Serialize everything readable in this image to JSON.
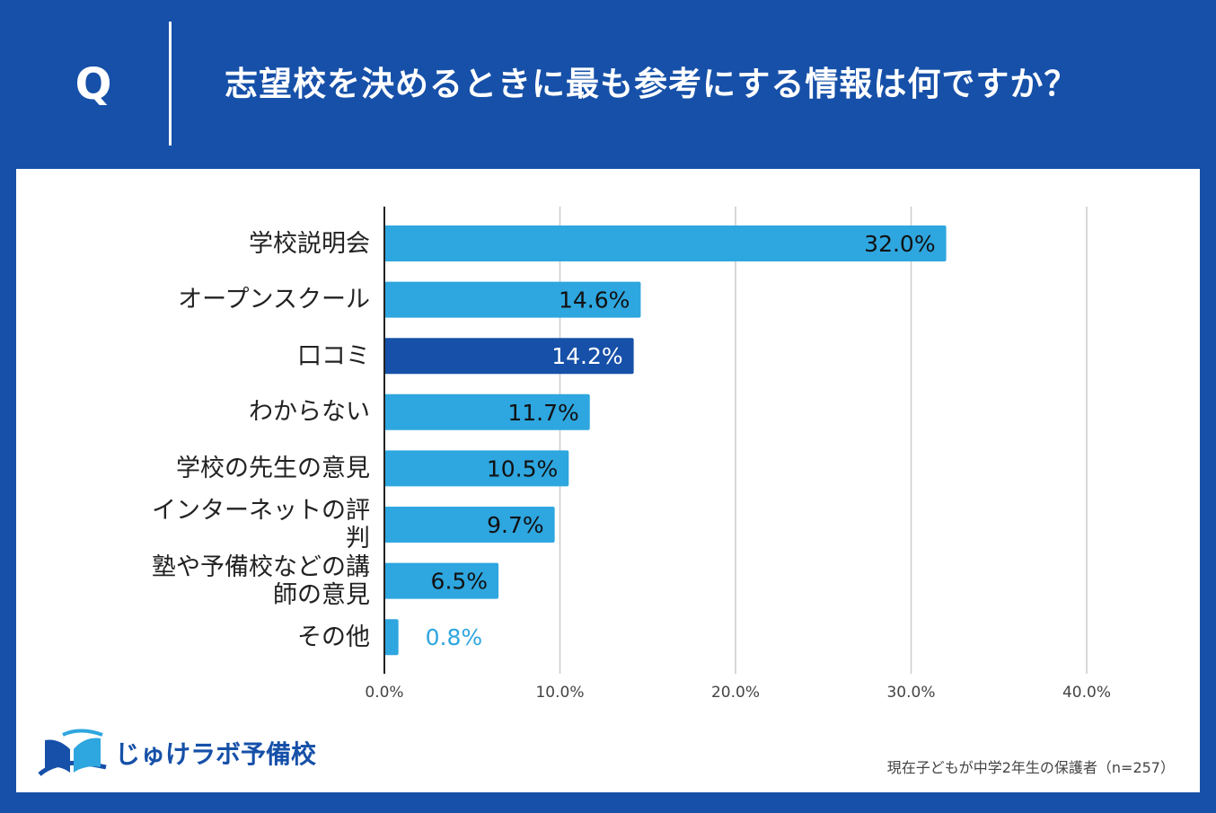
{
  "header": {
    "q_mark": "Q",
    "question": "志望校を決めるときに最も参考にする情報は何ですか？"
  },
  "colors": {
    "background": "#1650a8",
    "bar": "#2ea6df",
    "bar_highlight": "#1650a8",
    "value_outside": "#2ea6df",
    "gridline": "#cccccc"
  },
  "chart_data": {
    "type": "bar",
    "orientation": "horizontal",
    "categories": [
      "学校説明会",
      "オープンスクール",
      "口コミ",
      "わからない",
      "学校の先生の意見",
      "インターネットの評判",
      "塾や予備校などの講師の意見",
      "その他"
    ],
    "category_lines": [
      [
        "学校説明会"
      ],
      [
        "オープンスクール"
      ],
      [
        "口コミ"
      ],
      [
        "わからない"
      ],
      [
        "学校の先生の意見"
      ],
      [
        "インターネットの評",
        "判"
      ],
      [
        "塾や予備校などの講",
        "師の意見"
      ],
      [
        "その他"
      ]
    ],
    "values": [
      32.0,
      14.6,
      14.2,
      11.7,
      10.5,
      9.7,
      6.5,
      0.8
    ],
    "value_labels": [
      "32.0%",
      "14.6%",
      "14.2%",
      "11.7%",
      "10.5%",
      "9.7%",
      "6.5%",
      "0.8%"
    ],
    "highlight_index": 2,
    "xlim": [
      0,
      40
    ],
    "ticks": [
      0,
      10,
      20,
      30,
      40
    ],
    "tick_labels": [
      "0.0%",
      "10.0%",
      "20.0%",
      "30.0%",
      "40.0%"
    ],
    "grid": true,
    "xlabel": "",
    "ylabel": ""
  },
  "footer": {
    "logo_text": "じゅけラボ予備校",
    "logo_icon": "open-book-icon",
    "note": "現在子どもが中学2年生の保護者（n=257）"
  }
}
